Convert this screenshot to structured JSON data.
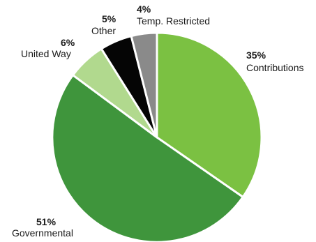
{
  "chart_data": {
    "type": "pie",
    "title": "",
    "start": "top, clockwise",
    "slices": [
      {
        "label": "Contributions",
        "value": 35,
        "pct_text": "35%",
        "color": "#7bc142"
      },
      {
        "label": "Governmental",
        "value": 51,
        "pct_text": "51%",
        "color": "#3f953c"
      },
      {
        "label": "United Way",
        "value": 6,
        "pct_text": "6%",
        "color": "#b1d98e"
      },
      {
        "label": "Other",
        "value": 5,
        "pct_text": "5%",
        "color": "#050505"
      },
      {
        "label": "Temp. Restricted",
        "value": 4,
        "pct_text": "4%",
        "color": "#8a8a8a"
      }
    ]
  }
}
